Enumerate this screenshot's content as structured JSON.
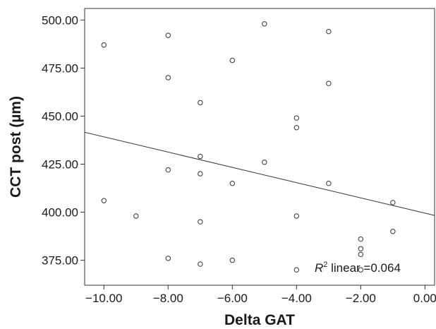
{
  "chart_data": {
    "type": "scatter",
    "title": "",
    "xlabel": "Delta GAT",
    "ylabel": "CCT post (µm)",
    "xlim": [
      -10.6,
      0.3
    ],
    "ylim": [
      362,
      506
    ],
    "x_ticks": [
      -10,
      -8,
      -6,
      -4,
      -2,
      0
    ],
    "x_tick_labels": [
      "−10.00",
      "−8.00",
      "−6.00",
      "−4.00",
      "−2.00",
      "0.00"
    ],
    "y_ticks": [
      375,
      400,
      425,
      450,
      475,
      500
    ],
    "y_tick_labels": [
      "375.00",
      "400.00",
      "425.00",
      "450.00",
      "475.00",
      "500.00"
    ],
    "grid": false,
    "points": [
      {
        "x": -10,
        "y": 487
      },
      {
        "x": -10,
        "y": 406
      },
      {
        "x": -9,
        "y": 398
      },
      {
        "x": -8,
        "y": 492
      },
      {
        "x": -8,
        "y": 470
      },
      {
        "x": -8,
        "y": 422
      },
      {
        "x": -8,
        "y": 376
      },
      {
        "x": -7,
        "y": 457
      },
      {
        "x": -7,
        "y": 429
      },
      {
        "x": -7,
        "y": 420
      },
      {
        "x": -7,
        "y": 395
      },
      {
        "x": -7,
        "y": 373
      },
      {
        "x": -6,
        "y": 479
      },
      {
        "x": -6,
        "y": 415
      },
      {
        "x": -6,
        "y": 375
      },
      {
        "x": -5,
        "y": 498
      },
      {
        "x": -5,
        "y": 426
      },
      {
        "x": -4,
        "y": 449
      },
      {
        "x": -4,
        "y": 444
      },
      {
        "x": -4,
        "y": 398
      },
      {
        "x": -4,
        "y": 370
      },
      {
        "x": -3,
        "y": 494
      },
      {
        "x": -3,
        "y": 467
      },
      {
        "x": -3,
        "y": 415
      },
      {
        "x": -2,
        "y": 386
      },
      {
        "x": -2,
        "y": 381
      },
      {
        "x": -2,
        "y": 378
      },
      {
        "x": -2,
        "y": 370
      },
      {
        "x": -1,
        "y": 405
      },
      {
        "x": -1,
        "y": 390
      }
    ],
    "fit_line": {
      "slope": -3.97,
      "intercept": 399.5
    },
    "annotation": {
      "r_symbol": "R",
      "r_sup": "2",
      "text": " linear =0.064"
    }
  }
}
